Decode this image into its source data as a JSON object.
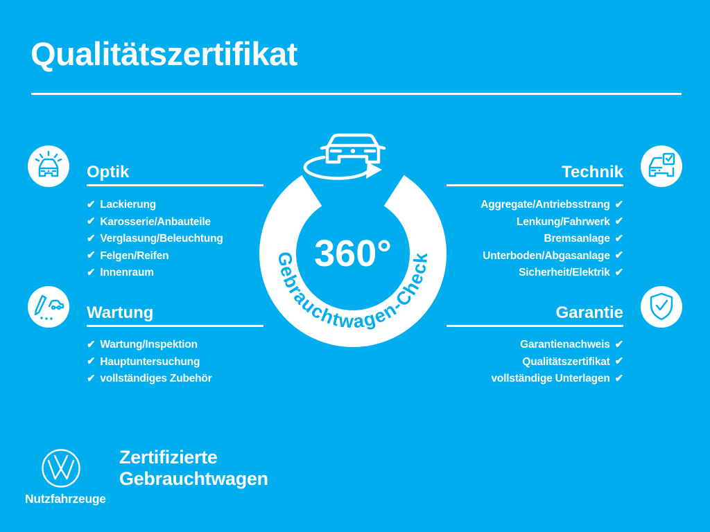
{
  "colors": {
    "background": "#00AEEF",
    "foreground": "#FFFFFF"
  },
  "title": "Qualitätszertifikat",
  "check_glyph": "✔",
  "center": {
    "degrees": "360°",
    "ring_label": "Gebrauchtwagen-Check",
    "icon": "rotating-van-icon"
  },
  "sections": [
    {
      "id": "optik",
      "heading": "Optik",
      "icon": "car-front-shine-icon",
      "align": "left",
      "items": [
        "Lackierung",
        "Karosserie/Anbauteile",
        "Verglasung/Beleuchtung",
        "Felgen/Reifen",
        "Innenraum"
      ]
    },
    {
      "id": "wartung",
      "heading": "Wartung",
      "icon": "pencil-checklist-car-icon",
      "align": "left",
      "items": [
        "Wartung/Inspektion",
        "Hauptuntersuchung",
        "vollständiges Zubehör"
      ]
    },
    {
      "id": "technik",
      "heading": "Technik",
      "icon": "car-checkbox-icon",
      "align": "right",
      "items": [
        "Aggregate/Antriebsstrang",
        "Lenkung/Fahrwerk",
        "Bremsanlage",
        "Unterboden/Abgasanlage",
        "Sicherheit/Elektrik"
      ]
    },
    {
      "id": "garantie",
      "heading": "Garantie",
      "icon": "shield-check-icon",
      "align": "right",
      "items": [
        "Garantienachweis",
        "Qualitätszertifikat",
        "vollständige Unterlagen"
      ]
    }
  ],
  "footer": {
    "logo": "vw-logo",
    "brand": "Nutzfahrzeuge",
    "tagline_line1": "Zertifizierte",
    "tagline_line2": "Gebrauchtwagen"
  }
}
